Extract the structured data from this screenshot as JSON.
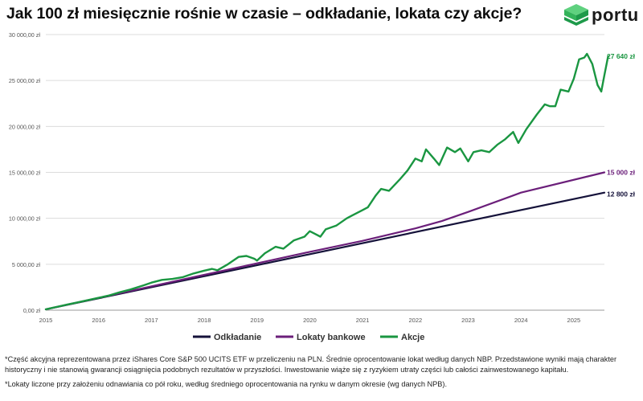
{
  "title": "Jak 100 zł miesięcznie rośnie w czasie – odkładanie, lokata czy akcje?",
  "brand": {
    "name": "portu",
    "colors": {
      "dark": "#1e9a4a",
      "light": "#5fd17f",
      "mid": "#33b35a"
    }
  },
  "footnotes": [
    "*Część akcyjna reprezentowana przez iShares Core S&P 500 UCITS ETF w przeliczeniu na PLN. Średnie oprocentowanie lokat według danych NBP. Przedstawione wyniki mają charakter historyczny i nie stanowią gwarancji osiągnięcia podobnych rezultatów w przyszłości. Inwestowanie wiąże się z ryzykiem utraty części lub całości zainwestowanego kapitału.",
    "*Lokaty liczone przy założeniu odnawiania co pół roku, według średniego oprocentowania na rynku w danym okresie (wg danych NPB)."
  ],
  "chart_data": {
    "type": "line",
    "title": "Jak 100 zł miesięcznie rośnie w czasie – odkładanie, lokata czy akcje?",
    "xlabel": "",
    "ylabel": "",
    "xlim": [
      2015.0,
      2025.58
    ],
    "ylim": [
      0,
      30000
    ],
    "y_ticks": [
      0,
      5000,
      10000,
      15000,
      20000,
      25000,
      30000
    ],
    "y_tick_labels": [
      "0,00 zł",
      "5 000,00 zł",
      "10 000,00 zł",
      "15 000,00 zł",
      "20 000,00 zł",
      "25 000,00 zł",
      "30 000,00 zł"
    ],
    "x_ticks": [
      2015,
      2016,
      2017,
      2018,
      2019,
      2020,
      2021,
      2022,
      2023,
      2024,
      2025
    ],
    "x_tick_labels": [
      "2015",
      "2016",
      "2017",
      "2018",
      "2019",
      "2020",
      "2021",
      "2022",
      "2023",
      "2024",
      "2025"
    ],
    "grid": "horizontal",
    "legend_position": "bottom",
    "series": [
      {
        "name": "Odkładanie",
        "color": "#15123a",
        "end_label": "12 800 zł",
        "points": [
          [
            2015.0,
            100
          ],
          [
            2025.58,
            12800
          ]
        ]
      },
      {
        "name": "Lokaty bankowe",
        "color": "#6b1f7a",
        "end_label": "15 000 zł",
        "points": [
          [
            2015.0,
            100
          ],
          [
            2016.0,
            1340
          ],
          [
            2017.0,
            2600
          ],
          [
            2018.0,
            3850
          ],
          [
            2019.0,
            5100
          ],
          [
            2020.0,
            6350
          ],
          [
            2021.0,
            7550
          ],
          [
            2022.0,
            8900
          ],
          [
            2022.5,
            9700
          ],
          [
            2023.0,
            10700
          ],
          [
            2024.0,
            12800
          ],
          [
            2025.58,
            15000
          ]
        ]
      },
      {
        "name": "Akcje",
        "color": "#1a9641",
        "end_label": "27 640 zł",
        "points": [
          [
            2015.0,
            100
          ],
          [
            2015.2,
            350
          ],
          [
            2015.4,
            600
          ],
          [
            2015.6,
            850
          ],
          [
            2015.8,
            1100
          ],
          [
            2016.0,
            1350
          ],
          [
            2016.2,
            1600
          ],
          [
            2016.4,
            1950
          ],
          [
            2016.6,
            2250
          ],
          [
            2016.85,
            2700
          ],
          [
            2017.0,
            3000
          ],
          [
            2017.2,
            3300
          ],
          [
            2017.4,
            3400
          ],
          [
            2017.6,
            3600
          ],
          [
            2017.8,
            4000
          ],
          [
            2018.0,
            4300
          ],
          [
            2018.15,
            4500
          ],
          [
            2018.25,
            4350
          ],
          [
            2018.45,
            5000
          ],
          [
            2018.65,
            5800
          ],
          [
            2018.8,
            5900
          ],
          [
            2018.95,
            5600
          ],
          [
            2019.0,
            5400
          ],
          [
            2019.15,
            6200
          ],
          [
            2019.35,
            6900
          ],
          [
            2019.5,
            6700
          ],
          [
            2019.7,
            7600
          ],
          [
            2019.9,
            8000
          ],
          [
            2020.0,
            8600
          ],
          [
            2020.1,
            8300
          ],
          [
            2020.2,
            8000
          ],
          [
            2020.3,
            8800
          ],
          [
            2020.5,
            9200
          ],
          [
            2020.7,
            10000
          ],
          [
            2020.8,
            10300
          ],
          [
            2021.0,
            10900
          ],
          [
            2021.1,
            11200
          ],
          [
            2021.25,
            12500
          ],
          [
            2021.35,
            13200
          ],
          [
            2021.5,
            13000
          ],
          [
            2021.7,
            14200
          ],
          [
            2021.85,
            15200
          ],
          [
            2022.0,
            16500
          ],
          [
            2022.12,
            16200
          ],
          [
            2022.2,
            17500
          ],
          [
            2022.35,
            16500
          ],
          [
            2022.45,
            15800
          ],
          [
            2022.6,
            17700
          ],
          [
            2022.75,
            17200
          ],
          [
            2022.85,
            17600
          ],
          [
            2023.0,
            16200
          ],
          [
            2023.1,
            17200
          ],
          [
            2023.25,
            17400
          ],
          [
            2023.4,
            17200
          ],
          [
            2023.55,
            18000
          ],
          [
            2023.7,
            18600
          ],
          [
            2023.85,
            19400
          ],
          [
            2023.95,
            18200
          ],
          [
            2024.1,
            19700
          ],
          [
            2024.3,
            21300
          ],
          [
            2024.45,
            22400
          ],
          [
            2024.55,
            22200
          ],
          [
            2024.65,
            22200
          ],
          [
            2024.75,
            24000
          ],
          [
            2024.9,
            23800
          ],
          [
            2025.0,
            25200
          ],
          [
            2025.1,
            27300
          ],
          [
            2025.2,
            27500
          ],
          [
            2025.25,
            27900
          ],
          [
            2025.35,
            26800
          ],
          [
            2025.45,
            24500
          ],
          [
            2025.52,
            23800
          ],
          [
            2025.58,
            25600
          ],
          [
            2025.65,
            27640
          ]
        ]
      }
    ]
  }
}
